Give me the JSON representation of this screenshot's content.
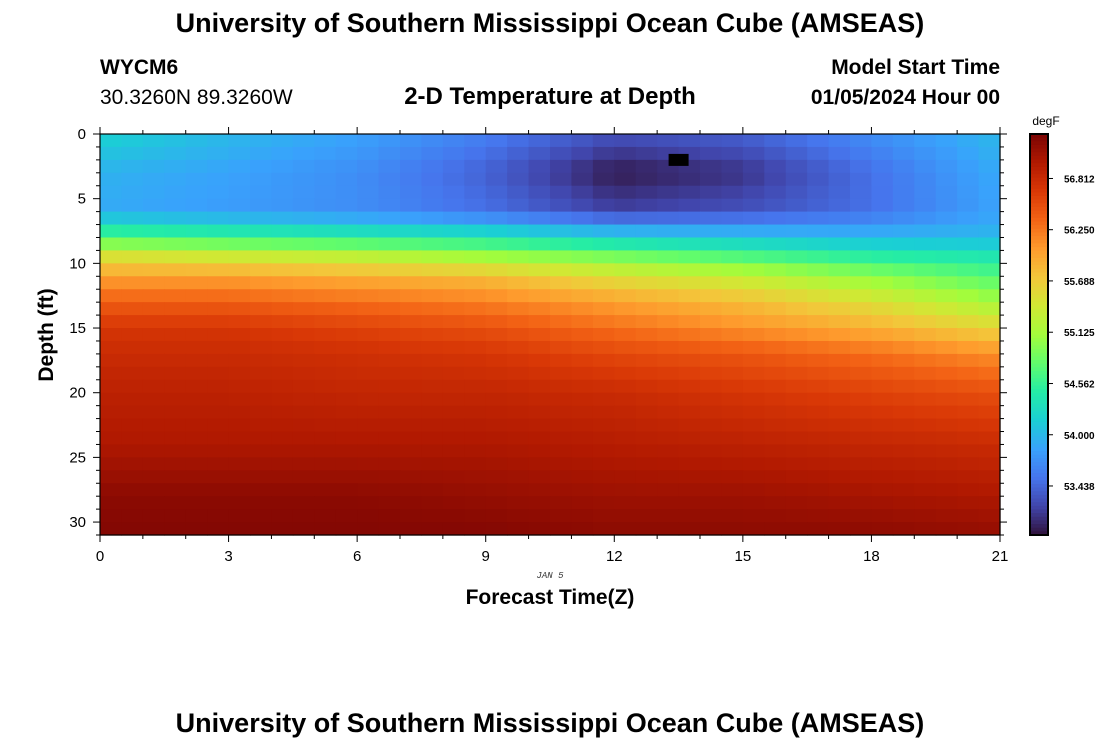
{
  "header": {
    "title": "University of Southern Mississippi Ocean Cube (AMSEAS)",
    "station_id": "WYCM6",
    "coordinates": "30.3260N  89.3260W",
    "subtitle": "2-D Temperature at Depth",
    "model_start_label": "Model Start Time",
    "model_start_value": "01/05/2024 Hour 00"
  },
  "footer": {
    "title": "University of Southern Mississippi Ocean Cube (AMSEAS)"
  },
  "chart_data": {
    "type": "heatmap",
    "title": "2-D Temperature at Depth",
    "xlabel": "Forecast Time(Z)",
    "ylabel": "Depth (ft)",
    "date_label": "JAN 5",
    "xlim": [
      0,
      21
    ],
    "ylim": [
      0,
      31
    ],
    "x_ticks": [
      0,
      3,
      6,
      9,
      12,
      15,
      18,
      21
    ],
    "y_ticks": [
      0,
      5,
      10,
      15,
      20,
      25,
      30
    ],
    "colorbar": {
      "units": "degF",
      "min": 52.9,
      "max": 57.3,
      "tick_values": [
        56.812,
        56.25,
        55.688,
        55.125,
        54.562,
        54.0,
        53.438
      ],
      "tick_labels": [
        "56.812",
        "56.250",
        "55.688",
        "55.125",
        "54.562",
        "54.000",
        "53.438"
      ],
      "colors": [
        "#30123b",
        "#4145ab",
        "#4675ed",
        "#39a2fc",
        "#1bcfd4",
        "#24eca6",
        "#61fc6c",
        "#a4fc3b",
        "#d1e834",
        "#f3c63a",
        "#fe9b2d",
        "#f36315",
        "#d93806",
        "#b11901",
        "#7a0403"
      ]
    },
    "x_hours": [
      0,
      3,
      6,
      9,
      12,
      15,
      18,
      21
    ],
    "depth_ft": [
      0,
      3,
      6,
      8,
      9.5,
      11,
      13,
      15,
      17,
      20,
      24,
      28,
      31
    ],
    "temperature_degF": [
      [
        54.2,
        54.0,
        53.85,
        53.6,
        53.3,
        53.4,
        53.7,
        54.0
      ],
      [
        53.95,
        53.85,
        53.7,
        53.4,
        52.95,
        53.1,
        53.5,
        53.9
      ],
      [
        53.9,
        53.8,
        53.7,
        53.5,
        53.2,
        53.3,
        53.5,
        53.85
      ],
      [
        54.7,
        54.6,
        54.5,
        54.4,
        54.2,
        54.1,
        54.0,
        54.0
      ],
      [
        55.5,
        55.4,
        55.3,
        55.1,
        54.9,
        54.7,
        54.5,
        54.4
      ],
      [
        56.0,
        56.0,
        55.9,
        55.8,
        55.5,
        55.3,
        55.0,
        54.7
      ],
      [
        56.4,
        56.4,
        56.3,
        56.2,
        56.0,
        55.8,
        55.5,
        55.1
      ],
      [
        56.7,
        56.7,
        56.6,
        56.5,
        56.3,
        56.1,
        55.9,
        55.6
      ],
      [
        56.8,
        56.8,
        56.75,
        56.7,
        56.55,
        56.45,
        56.3,
        56.1
      ],
      [
        56.9,
        56.9,
        56.85,
        56.85,
        56.8,
        56.7,
        56.6,
        56.5
      ],
      [
        57.0,
        57.0,
        57.0,
        57.0,
        56.95,
        56.9,
        56.85,
        56.8
      ],
      [
        57.2,
        57.2,
        57.2,
        57.15,
        57.1,
        57.1,
        57.05,
        57.0
      ],
      [
        57.25,
        57.25,
        57.25,
        57.25,
        57.2,
        57.2,
        57.2,
        57.15
      ]
    ],
    "min_marker": {
      "x": 13.5,
      "depth": 2,
      "color": "#000000"
    }
  }
}
